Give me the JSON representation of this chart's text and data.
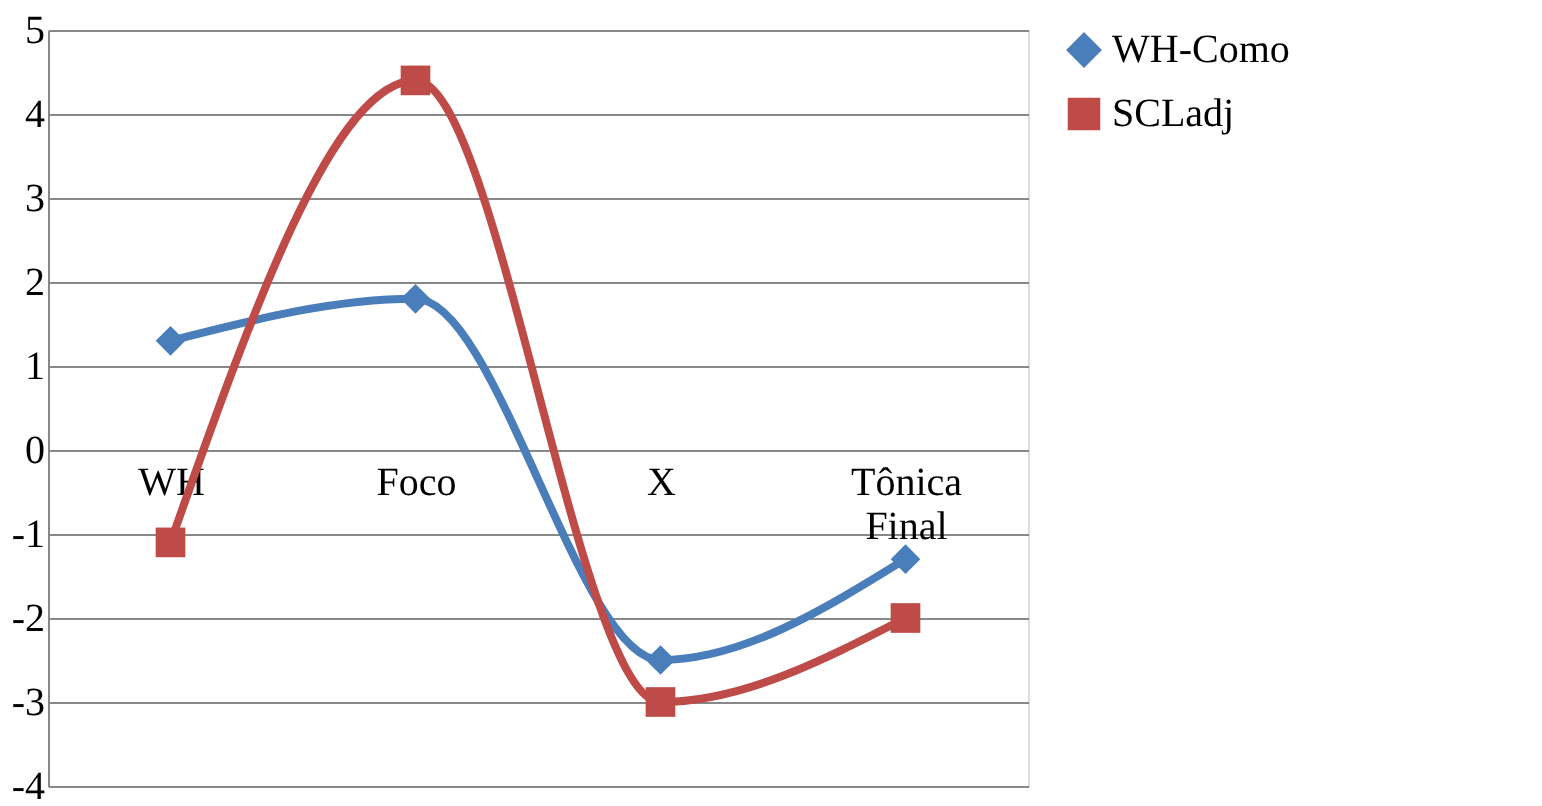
{
  "chart_data": {
    "type": "line",
    "categories": [
      "WH",
      "Foco",
      "X",
      "Tônica Final"
    ],
    "series": [
      {
        "name": "WH-Como",
        "color": "#4a7ebb",
        "marker": "diamond",
        "values": [
          1.3,
          1.8,
          -2.5,
          -1.3
        ]
      },
      {
        "name": "SCLadj",
        "color": "#be4b48",
        "marker": "square",
        "values": [
          -1.1,
          4.4,
          -3.0,
          -2.0
        ]
      }
    ],
    "ylim": [
      -4,
      5
    ],
    "yticks": [
      -4,
      -3,
      -2,
      -1,
      0,
      1,
      2,
      3,
      4,
      5
    ],
    "grid": "y",
    "legend": "right"
  }
}
